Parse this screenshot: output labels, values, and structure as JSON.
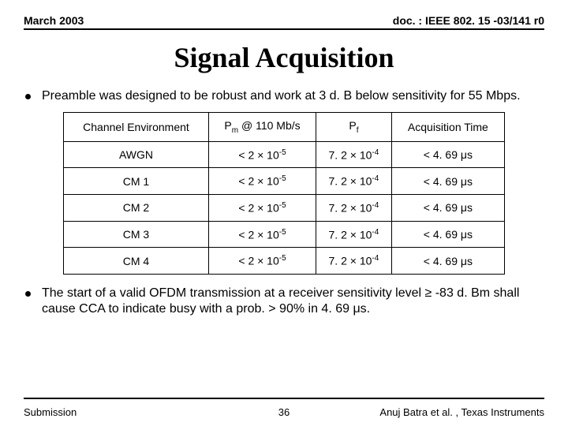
{
  "header": {
    "left": "March 2003",
    "right": "doc. : IEEE 802. 15 -03/141 r0"
  },
  "title": "Signal Acquisition",
  "bullet1": "Preamble was designed to be robust and work at 3 d. B below sensitivity for 55 Mbps.",
  "bullet2_a": "The start of a valid OFDM transmission at a receiver sensitivity level ",
  "bullet2_b": " -83 d. Bm shall cause CCA to indicate busy with a prob. > 90% in 4. 69 ",
  "bullet2_c": "s.",
  "table": {
    "headers": {
      "c0": "Channel Environment",
      "c1a": "P",
      "c1b": "m",
      "c1c": " @ 110 Mb/s",
      "c2a": "P",
      "c2b": "f",
      "c3": "Acquisition Time"
    },
    "rows": [
      {
        "env": "AWGN",
        "pm_a": "< 2 ",
        "pm_b": " 10",
        "pm_exp": "-5",
        "pf_a": "7. 2 ",
        "pf_b": " 10",
        "pf_exp": "-4",
        "aq_a": "< 4. 69 ",
        "aq_b": "s"
      },
      {
        "env": "CM 1",
        "pm_a": "< 2 ",
        "pm_b": " 10",
        "pm_exp": "-5",
        "pf_a": "7. 2 ",
        "pf_b": " 10",
        "pf_exp": "-4",
        "aq_a": "< 4. 69 ",
        "aq_b": "s"
      },
      {
        "env": "CM 2",
        "pm_a": "< 2 ",
        "pm_b": " 10",
        "pm_exp": "-5",
        "pf_a": "7. 2 ",
        "pf_b": " 10",
        "pf_exp": "-4",
        "aq_a": "< 4. 69 ",
        "aq_b": "s"
      },
      {
        "env": "CM 3",
        "pm_a": "< 2 ",
        "pm_b": " 10",
        "pm_exp": "-5",
        "pf_a": "7. 2 ",
        "pf_b": " 10",
        "pf_exp": "-4",
        "aq_a": "< 4. 69 ",
        "aq_b": "s"
      },
      {
        "env": "CM 4",
        "pm_a": "< 2 ",
        "pm_b": " 10",
        "pm_exp": "-5",
        "pf_a": "7. 2 ",
        "pf_b": " 10",
        "pf_exp": "-4",
        "aq_a": "< 4. 69 ",
        "aq_b": "s"
      }
    ]
  },
  "symbols": {
    "times": "×",
    "mu": "μ",
    "ge": "≥"
  },
  "footer": {
    "left": "Submission",
    "page": "36",
    "right": "Anuj Batra et al. , Texas Instruments"
  },
  "style": {
    "border_color": "#000000",
    "background": "#ffffff",
    "title_fontsize": 36,
    "body_fontsize": 16,
    "table_fontsize": 14
  }
}
